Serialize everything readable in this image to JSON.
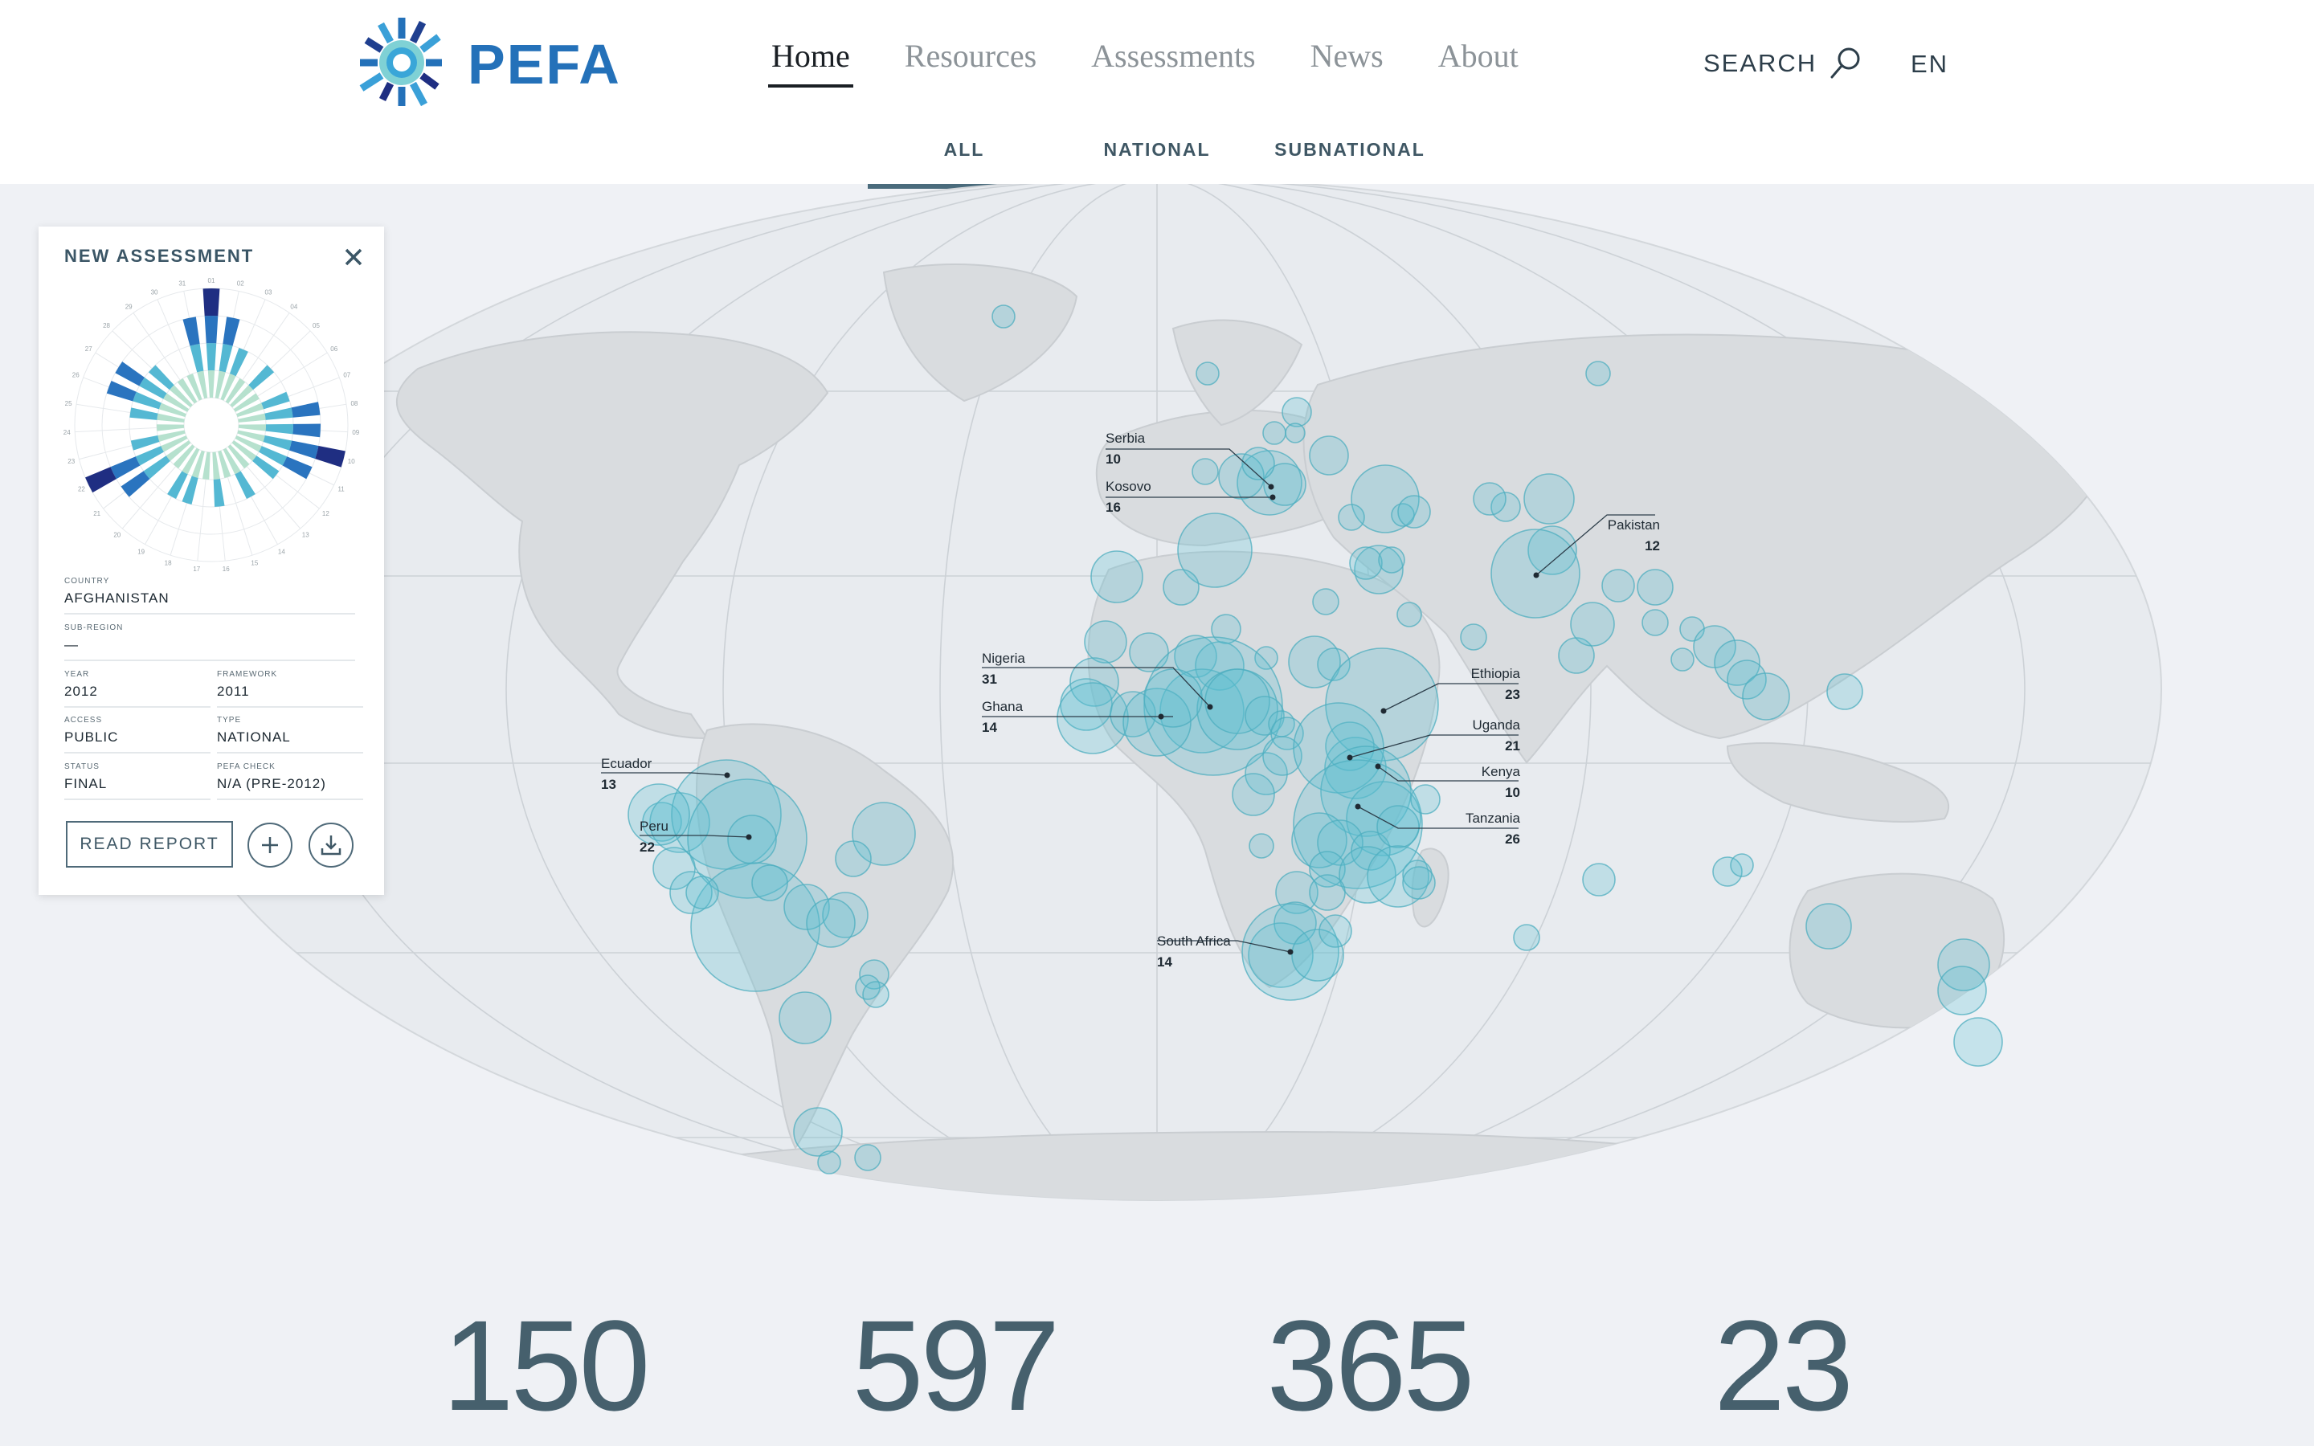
{
  "header": {
    "logo_text": "PEFA",
    "nav": [
      {
        "label": "Home",
        "active": true
      },
      {
        "label": "Resources",
        "active": false
      },
      {
        "label": "Assessments",
        "active": false
      },
      {
        "label": "News",
        "active": false
      },
      {
        "label": "About",
        "active": false
      }
    ],
    "search_label": "SEARCH",
    "language": "EN",
    "subnav": [
      {
        "label": "ALL",
        "active": true
      },
      {
        "label": "NATIONAL",
        "active": false
      },
      {
        "label": "SUBNATIONAL",
        "active": false
      }
    ]
  },
  "map": {
    "labels": [
      {
        "name": "Serbia",
        "value": "10"
      },
      {
        "name": "Kosovo",
        "value": "16"
      },
      {
        "name": "Pakistan",
        "value": "12"
      },
      {
        "name": "Nigeria",
        "value": "31"
      },
      {
        "name": "Ghana",
        "value": "14"
      },
      {
        "name": "Ethiopia",
        "value": "23"
      },
      {
        "name": "Uganda",
        "value": "21"
      },
      {
        "name": "Kenya",
        "value": "10"
      },
      {
        "name": "Tanzania",
        "value": "26"
      },
      {
        "name": "Ecuador",
        "value": "13"
      },
      {
        "name": "Peru",
        "value": "22"
      },
      {
        "name": "South Africa",
        "value": "14"
      }
    ]
  },
  "card": {
    "title": "NEW ASSESSMENT",
    "fields": {
      "country": {
        "label": "COUNTRY",
        "value": "AFGHANISTAN"
      },
      "subregion": {
        "label": "SUB-REGION",
        "value": "—"
      },
      "year": {
        "label": "YEAR",
        "value": "2012"
      },
      "framework": {
        "label": "FRAMEWORK",
        "value": "2011"
      },
      "access": {
        "label": "ACCESS",
        "value": "PUBLIC"
      },
      "type": {
        "label": "TYPE",
        "value": "NATIONAL"
      },
      "status": {
        "label": "STATUS",
        "value": "FINAL"
      },
      "check": {
        "label": "PEFA CHECK",
        "value": "N/A (PRE-2012)"
      }
    },
    "read_report": "READ REPORT",
    "rose_ticks": [
      "01",
      "02",
      "03",
      "04",
      "05",
      "06",
      "07",
      "08",
      "09",
      "10",
      "11",
      "12",
      "13",
      "14",
      "15",
      "16",
      "17",
      "18",
      "19",
      "20",
      "21",
      "22",
      "23",
      "24",
      "25",
      "26",
      "27",
      "28",
      "29",
      "30",
      "31"
    ],
    "rose_scores": [
      4,
      3,
      2,
      1,
      2,
      1,
      2,
      3,
      3,
      4,
      3,
      2,
      1,
      2,
      1,
      2,
      1,
      2,
      2,
      1,
      3,
      4,
      2,
      1,
      2,
      3,
      3,
      2,
      1,
      1,
      3
    ]
  },
  "stats": [
    "150",
    "597",
    "365",
    "23"
  ],
  "colors": {
    "brand_blue": "#2471b9",
    "bubble_fill": "#5bbfcf",
    "land": "#d9dcdf",
    "ocean": "#e8ebef",
    "rose_level1": "#b6e1ce",
    "rose_level2": "#54b8d3",
    "rose_level3": "#2a74bf",
    "rose_level4": "#1f2e82"
  }
}
